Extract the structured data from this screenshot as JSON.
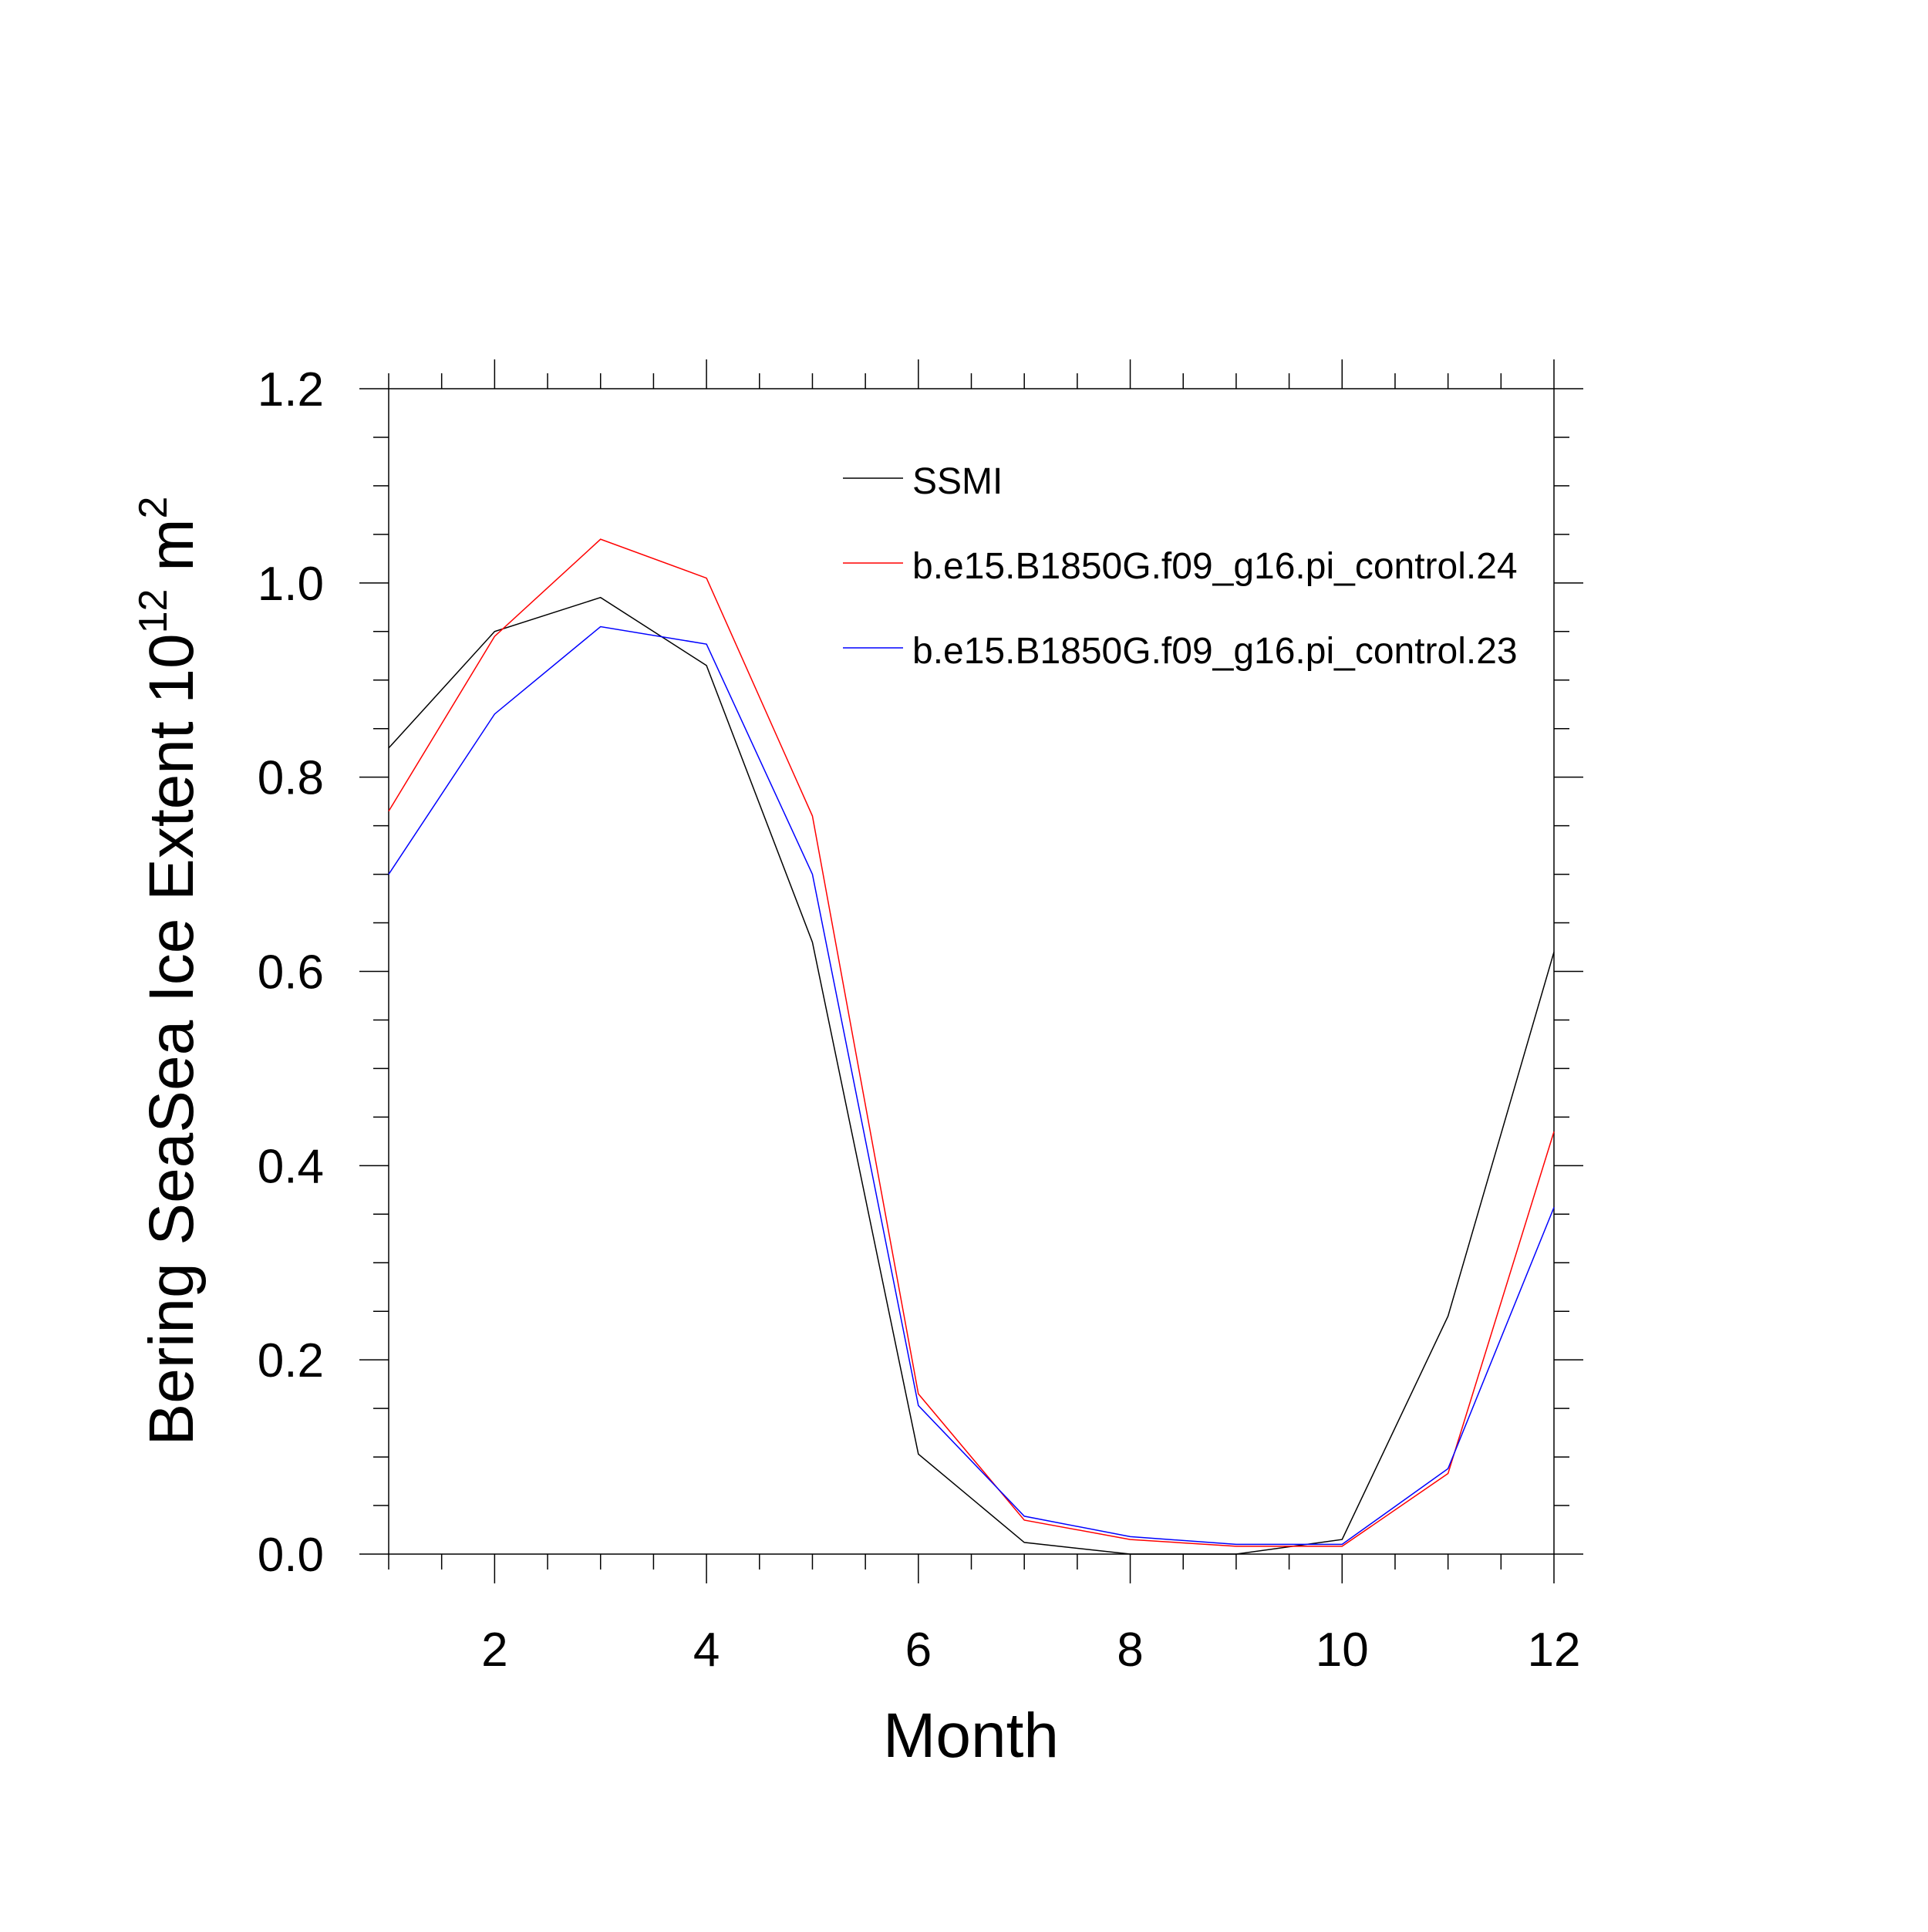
{
  "chart_data": {
    "type": "line",
    "title": "",
    "xlabel": "Month",
    "ylabel": {
      "base": "Bering SeaSea Ice Extent 10",
      "exponent1": "12",
      "unit": " m",
      "exponent2": "2"
    },
    "xlim": [
      1,
      12
    ],
    "ylim": [
      0,
      1.2
    ],
    "xticks": [
      "2",
      "4",
      "6",
      "8",
      "10",
      "12"
    ],
    "yticks": [
      "0.0",
      "0.2",
      "0.4",
      "0.6",
      "0.8",
      "1.0",
      "1.2"
    ],
    "grid": false,
    "legend_position": "top-right inside plot",
    "x": [
      1,
      2,
      3,
      4,
      5,
      6,
      7,
      8,
      9,
      10,
      11,
      12
    ],
    "series": [
      {
        "name": "SSMI",
        "color": "#000000",
        "values": [
          0.83,
          0.95,
          0.985,
          0.915,
          0.63,
          0.103,
          0.012,
          0.0,
          0.0,
          0.015,
          0.245,
          0.62
        ]
      },
      {
        "name": "b.e15.B1850G.f09_g16.pi_control.24",
        "color": "#ff0000",
        "values": [
          0.765,
          0.945,
          1.045,
          1.005,
          0.76,
          0.165,
          0.035,
          0.015,
          0.008,
          0.008,
          0.083,
          0.435
        ]
      },
      {
        "name": "b.e15.B1850G.f09_g16.pi_control.23",
        "color": "#0000ff",
        "values": [
          0.7,
          0.865,
          0.955,
          0.937,
          0.7,
          0.153,
          0.039,
          0.018,
          0.01,
          0.01,
          0.088,
          0.357
        ]
      }
    ]
  }
}
